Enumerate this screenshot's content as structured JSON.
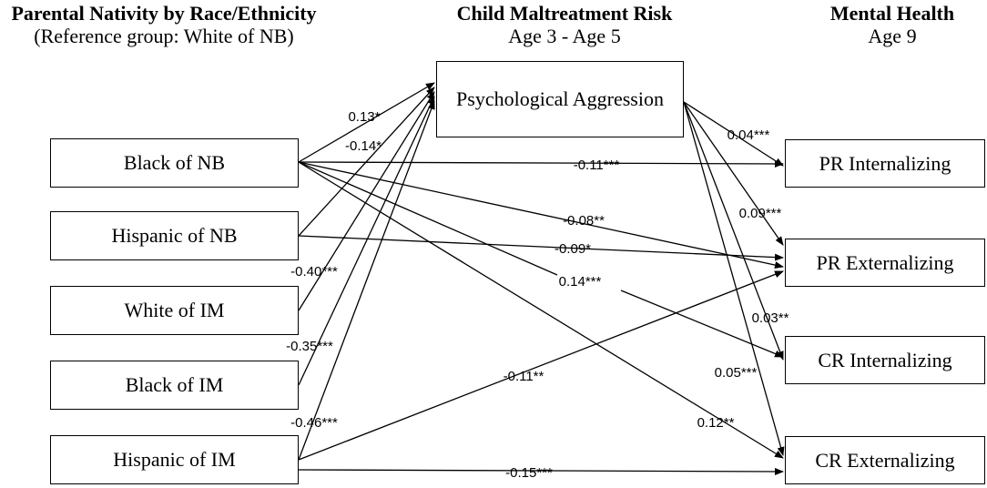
{
  "headers": {
    "left": {
      "title": "Parental Nativity by Race/Ethnicity",
      "subtitle": "(Reference group: White of NB)"
    },
    "middle": {
      "title": "Child Maltreatment Risk",
      "subtitle": "Age 3 - Age 5"
    },
    "right": {
      "title": "Mental Health",
      "subtitle": "Age 9"
    }
  },
  "predictors": [
    "Black of NB",
    "Hispanic of NB",
    "White of IM",
    "Black of IM",
    "Hispanic of IM"
  ],
  "mediator": "Psychological Aggression",
  "outcomes": [
    "PR Internalizing",
    "PR Externalizing",
    "CR Internalizing",
    "CR Externalizing"
  ],
  "paths": [
    {
      "from": "Black of NB",
      "to": "Psychological Aggression",
      "label": "0.13*"
    },
    {
      "from": "Hispanic of NB",
      "to": "Psychological Aggression",
      "label": "-0.14*"
    },
    {
      "from": "White of IM",
      "to": "Psychological Aggression",
      "label": "-0.40***"
    },
    {
      "from": "Black of IM",
      "to": "Psychological Aggression",
      "label": "-0.35***"
    },
    {
      "from": "Hispanic of IM",
      "to": "Psychological Aggression",
      "label": "-0.46***"
    },
    {
      "from": "Black of NB",
      "to": "PR Internalizing",
      "label": "-0.11***"
    },
    {
      "from": "Black of NB",
      "to": "PR Externalizing",
      "label": "-0.08**"
    },
    {
      "from": "Hispanic of NB",
      "to": "PR Externalizing",
      "label": "-0.09*"
    },
    {
      "from": "Black of NB",
      "to": "CR Internalizing",
      "label": "0.14***"
    },
    {
      "from": "Black of NB",
      "to": "CR Externalizing",
      "label": "0.12**"
    },
    {
      "from": "Hispanic of IM",
      "to": "PR Externalizing",
      "label": "-0.11**"
    },
    {
      "from": "Hispanic of IM",
      "to": "CR Externalizing",
      "label": "-0.15***"
    },
    {
      "from": "Psychological Aggression",
      "to": "PR Internalizing",
      "label": "0.04***"
    },
    {
      "from": "Psychological Aggression",
      "to": "PR Externalizing",
      "label": "0.09***"
    },
    {
      "from": "Psychological Aggression",
      "to": "CR Internalizing",
      "label": "0.03**"
    },
    {
      "from": "Psychological Aggression",
      "to": "CR Externalizing",
      "label": "0.05***"
    }
  ]
}
